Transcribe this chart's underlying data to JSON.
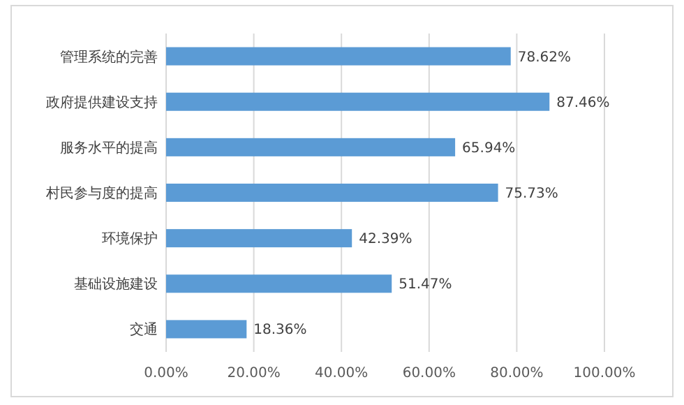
{
  "chart_data": {
    "type": "bar",
    "orientation": "horizontal",
    "categories": [
      "管理系统的完善",
      "政府提供建设支持",
      "服务水平的提高",
      "村民参与度的提高",
      "环境保护",
      "基础设施建设",
      "交通"
    ],
    "values": [
      78.62,
      87.46,
      65.94,
      75.73,
      42.39,
      51.47,
      18.36
    ],
    "value_labels": [
      "78.62%",
      "87.46%",
      "65.94%",
      "75.73%",
      "42.39%",
      "51.47%",
      "18.36%"
    ],
    "color": "#5b9bd5",
    "xlim": [
      0,
      100
    ],
    "xticks": [
      {
        "value": 0,
        "label": "0.00%"
      },
      {
        "value": 20,
        "label": "20.00%"
      },
      {
        "value": 40,
        "label": "40.00%"
      },
      {
        "value": 60,
        "label": "60.00%"
      },
      {
        "value": 80,
        "label": "80.00%"
      },
      {
        "value": 100,
        "label": "100.00%"
      }
    ],
    "grid": "x"
  }
}
